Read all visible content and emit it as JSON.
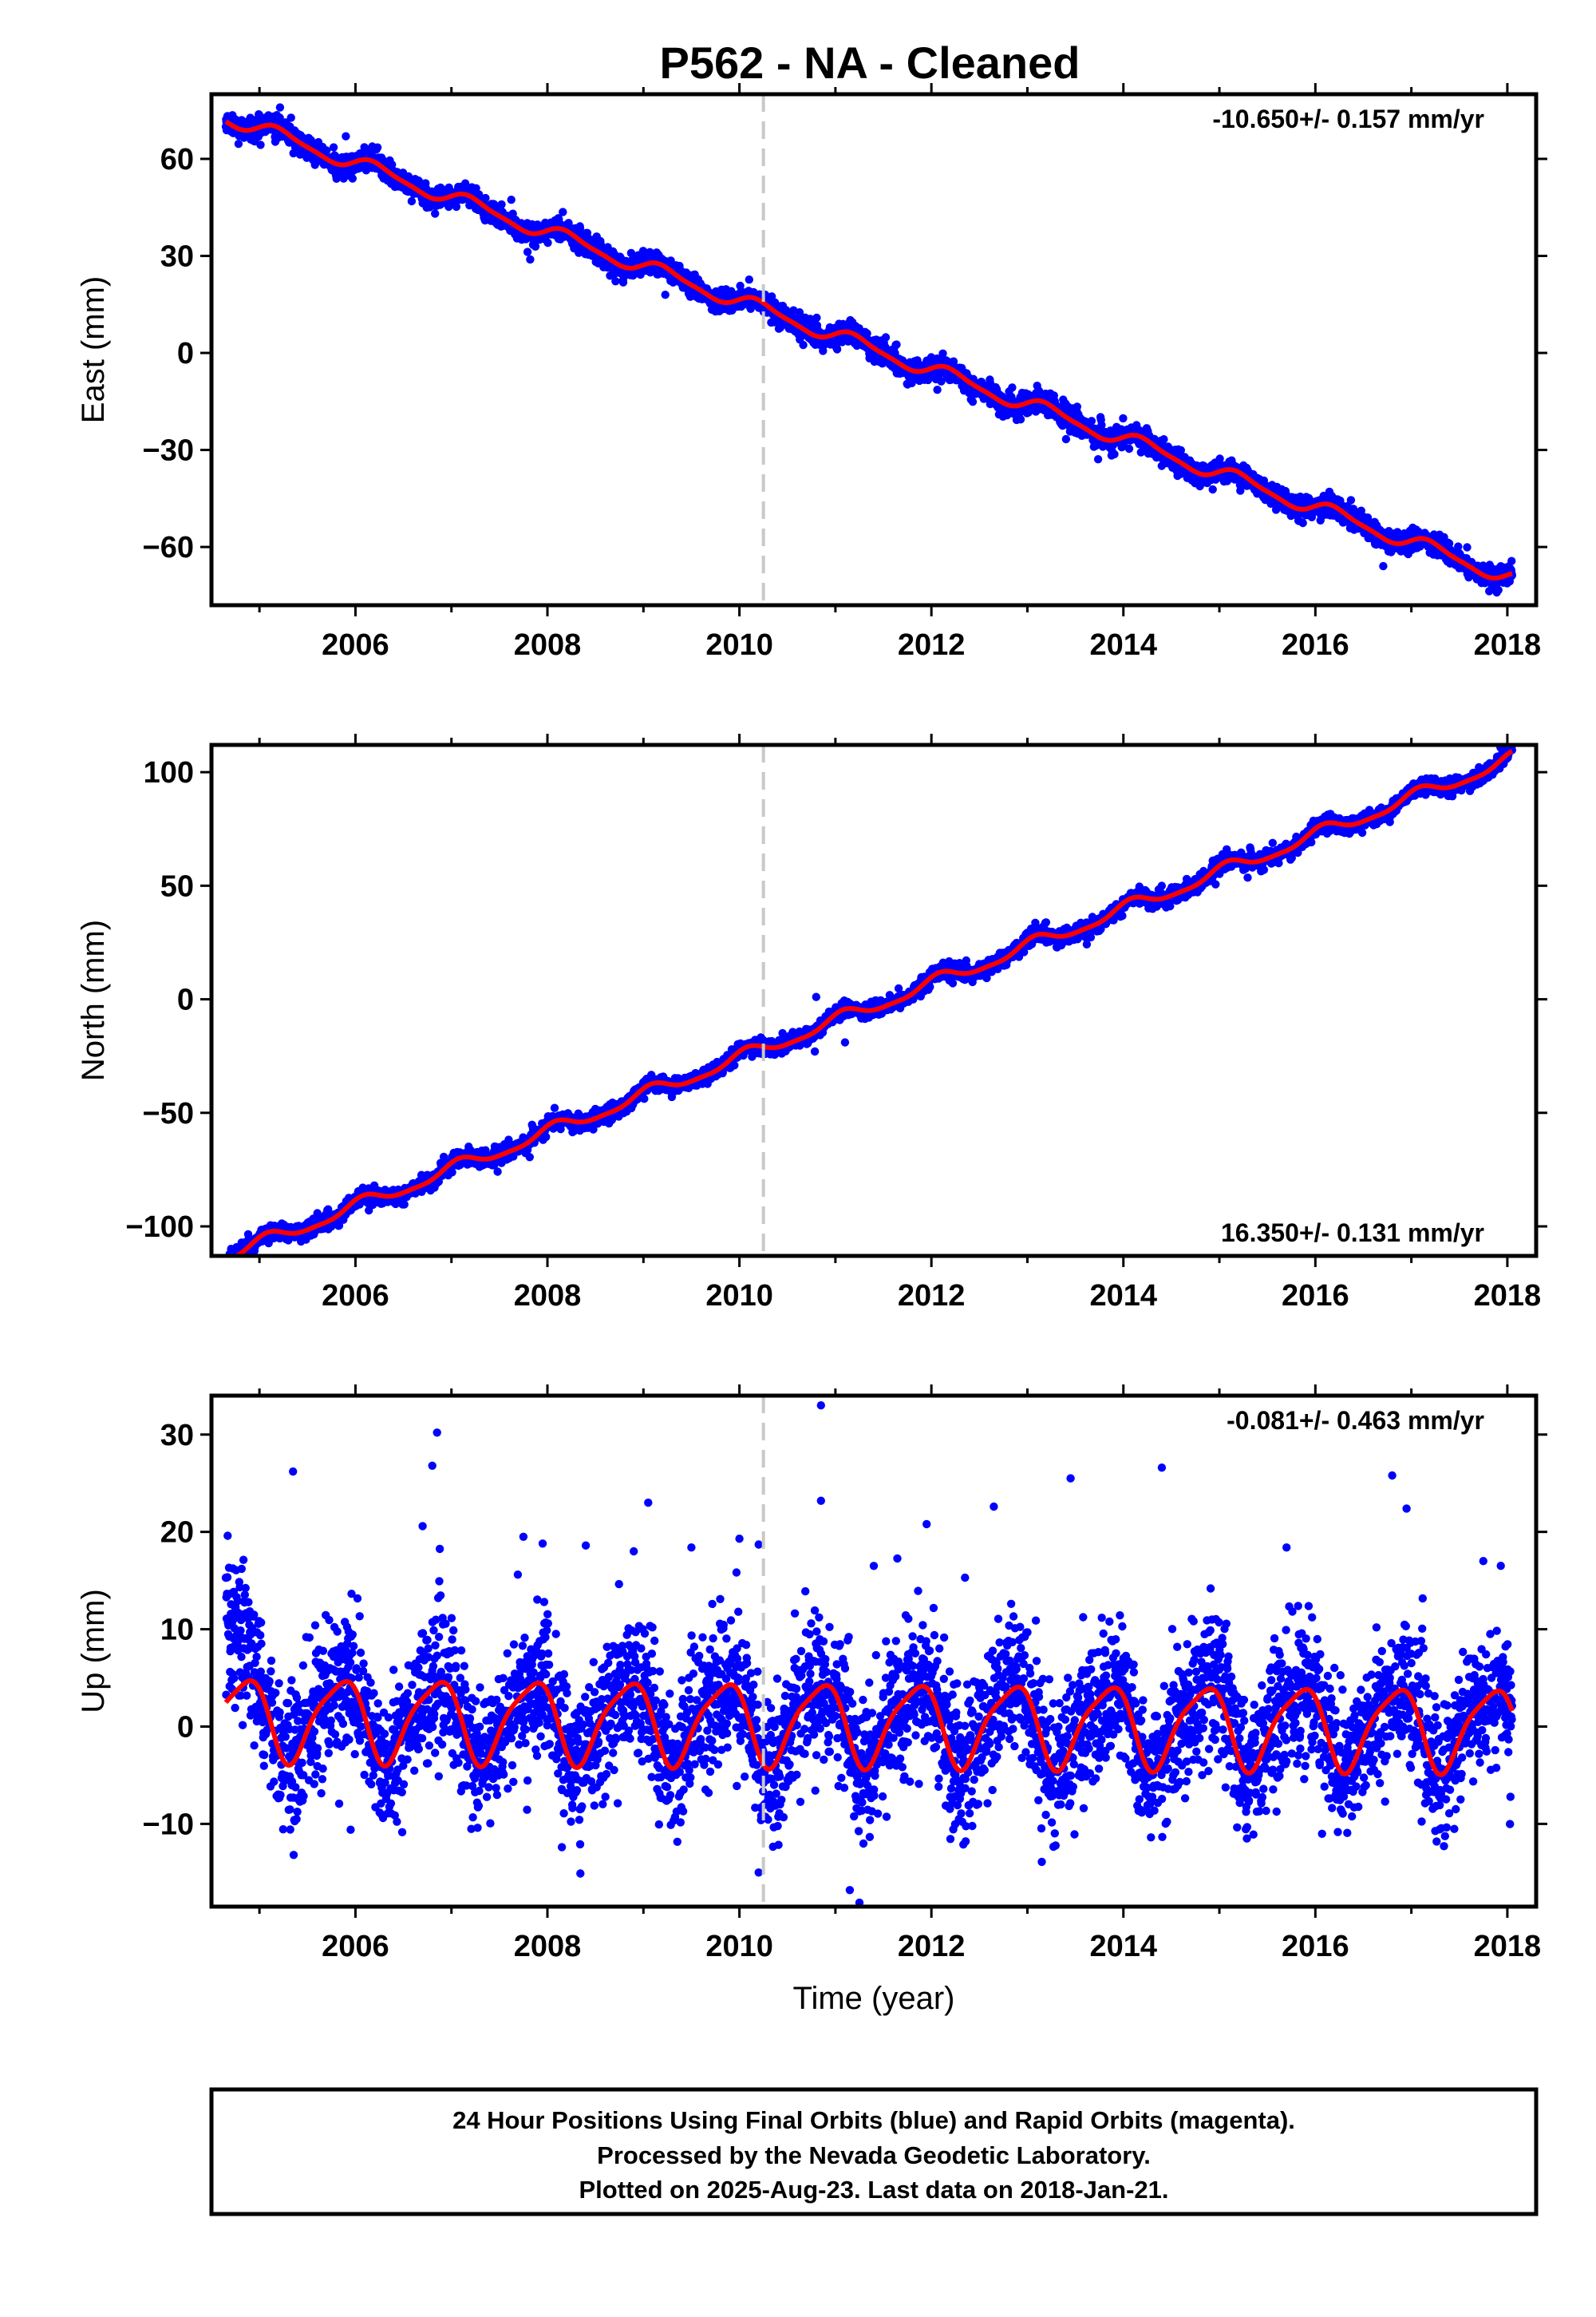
{
  "title": "P562  - NA - Cleaned",
  "colors": {
    "data": "#0000ff",
    "model": "#ff0000",
    "event": "#c8c8c8",
    "frame": "#000000"
  },
  "chart_data": [
    {
      "type": "scatter",
      "name": "east",
      "ylabel": "East (mm)",
      "xlabel": "",
      "xlim": [
        2004.5,
        2018.3
      ],
      "ylim": [
        -78,
        80
      ],
      "xticks": [
        2006,
        2008,
        2010,
        2012,
        2014,
        2016,
        2018
      ],
      "yticks": [
        -60,
        -30,
        0,
        30,
        60
      ],
      "rate_label": "-10.650+/- 0.157 mm/yr",
      "rate_position": "top-right",
      "event_x": 2010.25,
      "data_start": 2004.65,
      "data_end": 2018.05,
      "model": {
        "intercept_at_2011": 5.4,
        "rate": -10.65,
        "annual_amp": 2.2,
        "semiannual_amp": 0.6,
        "phase": 0.2
      },
      "outliers": [
        [
          2005.3,
          66
        ],
        [
          2005.9,
          67
        ]
      ]
    },
    {
      "type": "scatter",
      "name": "north",
      "ylabel": "North (mm)",
      "xlabel": "",
      "xlim": [
        2004.5,
        2018.3
      ],
      "ylim": [
        -113,
        112
      ],
      "xticks": [
        2006,
        2008,
        2010,
        2012,
        2014,
        2016,
        2018
      ],
      "yticks": [
        -100,
        -50,
        0,
        50,
        100
      ],
      "rate_label": "16.350+/- 0.131 mm/yr",
      "rate_position": "bottom-right",
      "event_x": 2010.25,
      "data_start": 2004.65,
      "data_end": 2018.05,
      "model": {
        "intercept_at_2011": -9.5,
        "rate": 16.35,
        "annual_amp": 2.8,
        "semiannual_amp": 0.8,
        "phase": 1.1
      },
      "outliers": [
        [
          2010.8,
          1
        ],
        [
          2011.1,
          -19
        ]
      ]
    },
    {
      "type": "scatter",
      "name": "up",
      "ylabel": "Up (mm)",
      "xlabel": "Time (year)",
      "xlim": [
        2004.5,
        2018.3
      ],
      "ylim": [
        -18.5,
        34
      ],
      "xticks": [
        2006,
        2008,
        2010,
        2012,
        2014,
        2016,
        2018
      ],
      "yticks": [
        -10,
        0,
        10,
        20,
        30
      ],
      "rate_label": "-0.081+/- 0.463 mm/yr",
      "rate_position": "top-right",
      "event_x": 2010.25,
      "data_start": 2004.65,
      "data_end": 2018.05,
      "model": {
        "intercept_at_2011": 0.4,
        "rate": -0.081,
        "annual_amp": 4.1,
        "semiannual_amp": 0.9,
        "phase": 2.6
      },
      "outliers": [
        [
          2005.35,
          26.2
        ],
        [
          2006.7,
          20.6
        ],
        [
          2006.8,
          26.8
        ],
        [
          2006.85,
          30.2
        ],
        [
          2007.75,
          19.5
        ],
        [
          2007.95,
          18.8
        ],
        [
          2008.4,
          18.6
        ],
        [
          2009.05,
          23
        ],
        [
          2009.5,
          18.4
        ],
        [
          2010.0,
          19.3
        ],
        [
          2010.2,
          18.7
        ],
        [
          2010.85,
          33
        ],
        [
          2010.85,
          23.2
        ],
        [
          2011.4,
          16.5
        ],
        [
          2011.95,
          20.8
        ],
        [
          2012.35,
          15.3
        ],
        [
          2012.65,
          22.6
        ],
        [
          2013.45,
          25.5
        ],
        [
          2014.4,
          26.6
        ],
        [
          2015.7,
          18.4
        ],
        [
          2016.8,
          25.8
        ],
        [
          2016.95,
          22.4
        ],
        [
          2017.75,
          17
        ],
        [
          2008.15,
          -12.4
        ],
        [
          2010.2,
          -15
        ],
        [
          2011.15,
          -16.8
        ],
        [
          2011.25,
          -18.1
        ],
        [
          2013.15,
          -13.9
        ],
        [
          2005.95,
          -10.6
        ]
      ]
    }
  ],
  "footer": {
    "line1": "24 Hour Positions Using Final Orbits (blue) and Rapid Orbits (magenta).",
    "line2": "Processed by the Nevada Geodetic Laboratory.",
    "line3": "Plotted on 2025-Aug-23. Last data on 2018-Jan-21."
  }
}
